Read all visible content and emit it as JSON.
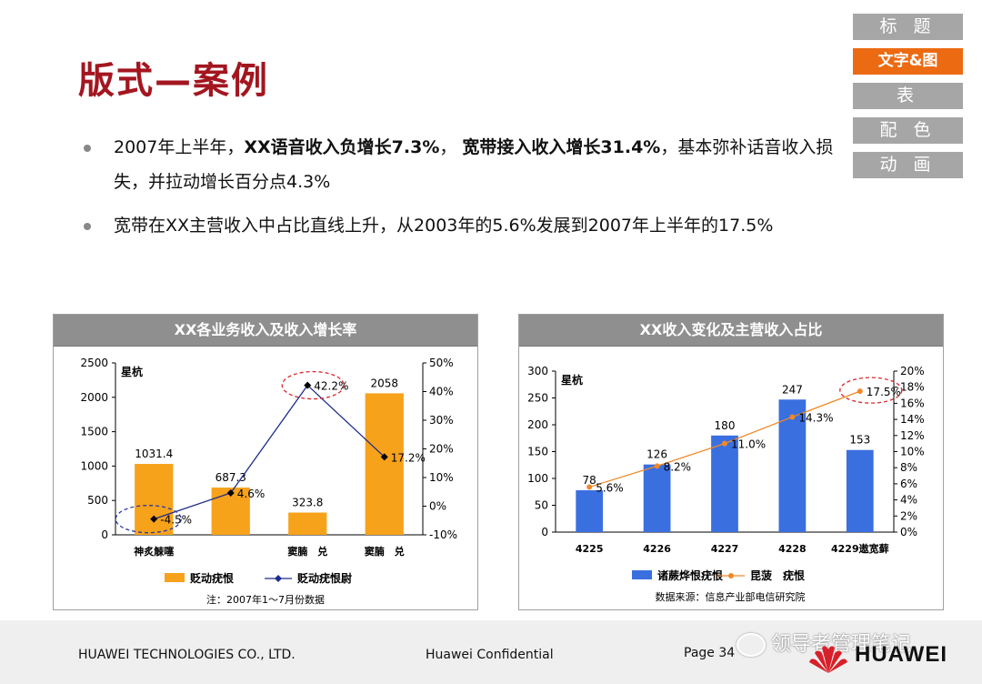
{
  "title": "版式—案例",
  "nav": [
    "标 题",
    "文字&图",
    "表",
    "配 色",
    "动 画"
  ],
  "bullets": [
    {
      "p1": "2007年上半年，",
      "b1": "XX语音收入负增长7.3%",
      "p2": "， ",
      "b2": "宽带接入收入增长31.4%",
      "p3": "，基本弥补话音收入损失，并拉动增长百分点4.3%"
    },
    {
      "text": "宽带在XX主营收入中占比直线上升，从2003年的5.6%发展到2007年上半年的17.5%"
    }
  ],
  "chart_data": [
    {
      "type": "bar",
      "title": "XX各业务收入及收入增长率",
      "y_unit": "星杭",
      "categories": [
        "神炙觫噻",
        "",
        "窦腩　兑",
        "窦腩　兑"
      ],
      "values": [
        1031.4,
        687.3,
        323.8,
        2058
      ],
      "value_labels": [
        "1031.4",
        "687.3",
        "323.8",
        "2058"
      ],
      "ylim": [
        0,
        2500
      ],
      "y_ticks": [
        "2500",
        "2000",
        "1500",
        "1000",
        "500",
        "0"
      ],
      "line": {
        "values": [
          -4.5,
          4.6,
          42.2,
          17.2
        ],
        "labels": [
          "-4.5%",
          "4.6%",
          "42.2%",
          "17.2%"
        ]
      },
      "y2lim": [
        -10,
        50
      ],
      "y2_ticks": [
        "50%",
        "40%",
        "30%",
        "20%",
        "10%",
        "0%",
        "-10%"
      ],
      "legend": [
        "贬动疣恨",
        "贬动疣恨尉"
      ],
      "note": "注：2007年1～7月份数据",
      "colors": {
        "bar": "#f7a21b",
        "line": "#1f2d8a",
        "highlight": "#d9262c",
        "highlight2": "#2a3a9c"
      }
    },
    {
      "type": "bar",
      "title": "XX收入变化及主营收入占比",
      "y_unit": "星杭",
      "categories": [
        "4225",
        "4226",
        "4227",
        "4228",
        "4229遨宽藓"
      ],
      "values": [
        78,
        126,
        180,
        247,
        153
      ],
      "value_labels": [
        "78",
        "126",
        "180",
        "247",
        "153"
      ],
      "ylim": [
        0,
        300
      ],
      "y_ticks": [
        "300",
        "250",
        "200",
        "150",
        "100",
        "50",
        "0"
      ],
      "line": {
        "values": [
          5.6,
          8.2,
          11.0,
          14.3,
          17.5
        ],
        "labels": [
          "5.6%",
          "8.2%",
          "11.0%",
          "14.3%",
          "17.5%"
        ]
      },
      "y2lim": [
        0,
        20
      ],
      "y2_ticks": [
        "20%",
        "18%",
        "16%",
        "14%",
        "12%",
        "10%",
        "8%",
        "6%",
        "4%",
        "2%",
        "0%"
      ],
      "legend": [
        "诸蕨烨恨疣恨",
        "昆菠　疣恨"
      ],
      "note": "数据来源：信息产业部电信研究院",
      "colors": {
        "bar": "#3a6fe0",
        "line": "#f0892a",
        "highlight": "#d9262c"
      }
    }
  ],
  "footer": {
    "company": "HUAWEI TECHNOLOGIES CO., LTD.",
    "confidential": "Huawei Confidential",
    "page": "Page 34",
    "wechat": "领导者管理笔记",
    "logo": "HUAWEI"
  }
}
